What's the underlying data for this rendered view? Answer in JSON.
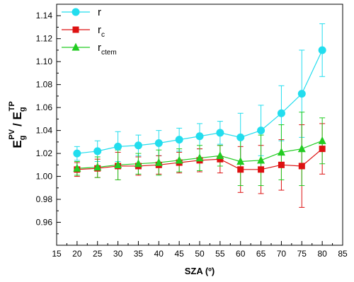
{
  "chart_data": {
    "type": "line",
    "xlabel": "SZA (º)",
    "ylabel": {
      "main": "E",
      "sub1": "g",
      "sup1": "PV",
      "mid": "/ E",
      "sub2": "g",
      "sup2": "TP"
    },
    "xlim": [
      15,
      85
    ],
    "ylim": [
      0.94,
      1.15
    ],
    "x_ticks": [
      15,
      20,
      25,
      30,
      35,
      40,
      45,
      50,
      55,
      60,
      65,
      70,
      75,
      80,
      85
    ],
    "y_ticks": [
      0.96,
      0.98,
      1.0,
      1.02,
      1.04,
      1.06,
      1.08,
      1.1,
      1.12,
      1.14
    ],
    "x_tick_labels": [
      "15",
      "20",
      "25",
      "30",
      "35",
      "40",
      "45",
      "50",
      "55",
      "60",
      "65",
      "70",
      "75",
      "80",
      "85"
    ],
    "y_tick_labels": [
      "0.96",
      "0.98",
      "1.00",
      "1.02",
      "1.04",
      "1.06",
      "1.08",
      "1.10",
      "1.12",
      "1.14"
    ],
    "grid": false,
    "legend_position": "top-left",
    "x": [
      20,
      25,
      30,
      35,
      40,
      45,
      50,
      55,
      60,
      65,
      70,
      75,
      80
    ],
    "series": [
      {
        "name": "r",
        "name_sub": "",
        "color": "#22ddee",
        "marker": "circle",
        "values": [
          1.02,
          1.022,
          1.026,
          1.027,
          1.029,
          1.032,
          1.035,
          1.038,
          1.034,
          1.04,
          1.055,
          1.072,
          1.11
        ],
        "errors": [
          0.006,
          0.009,
          0.013,
          0.009,
          0.011,
          0.01,
          0.011,
          0.01,
          0.021,
          0.022,
          0.024,
          0.038,
          0.023
        ]
      },
      {
        "name": "r",
        "name_sub": "c",
        "color": "#dd1111",
        "marker": "square",
        "values": [
          1.006,
          1.007,
          1.009,
          1.009,
          1.01,
          1.012,
          1.014,
          1.015,
          1.006,
          1.006,
          1.01,
          1.009,
          1.024
        ],
        "errors": [
          0.006,
          0.008,
          0.012,
          0.008,
          0.008,
          0.009,
          0.01,
          0.012,
          0.02,
          0.021,
          0.022,
          0.036,
          0.022
        ]
      },
      {
        "name": "r",
        "name_sub": "ctem",
        "color": "#22cc22",
        "marker": "triangle",
        "values": [
          1.007,
          1.008,
          1.01,
          1.011,
          1.012,
          1.014,
          1.016,
          1.018,
          1.013,
          1.014,
          1.021,
          1.024,
          1.031
        ],
        "errors": [
          0.006,
          0.009,
          0.013,
          0.009,
          0.011,
          0.01,
          0.011,
          0.009,
          0.021,
          0.022,
          0.024,
          0.032,
          0.02
        ]
      }
    ]
  }
}
